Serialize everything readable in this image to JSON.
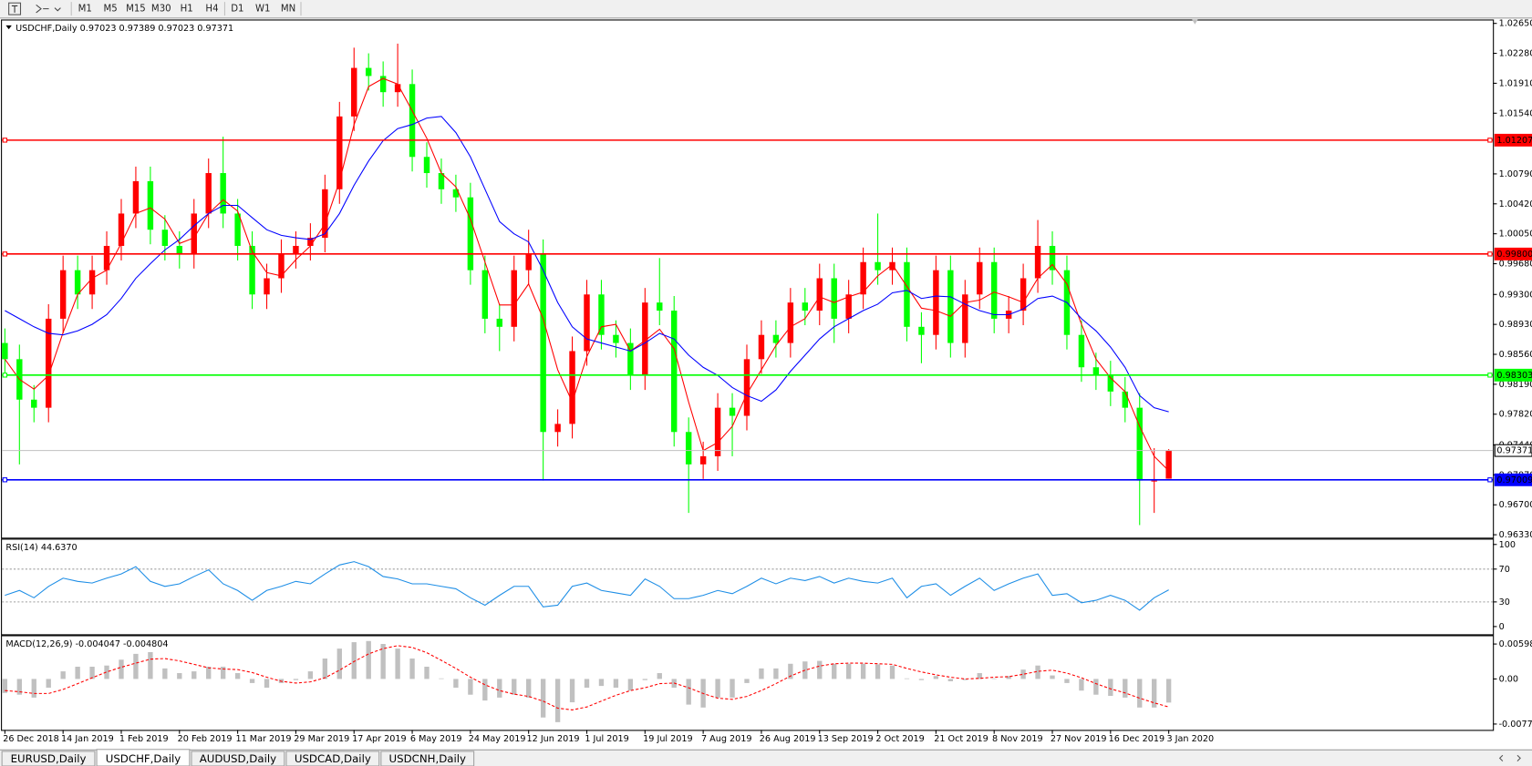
{
  "toolbar": {
    "periods": [
      "M1",
      "M5",
      "M15",
      "M30",
      "H1",
      "H4",
      "D1",
      "W1",
      "MN"
    ]
  },
  "tabs": [
    "EURUSD,Daily",
    "USDCHF,Daily",
    "AUDUSD,Daily",
    "USDCAD,Daily",
    "USDCNH,Daily"
  ],
  "active_tab": 1,
  "chart_data": [
    {
      "type": "candlestick",
      "title": "USDCHF,Daily  0.97023 0.97389 0.97023 0.97371",
      "categories": [
        "26 Dec 2018",
        null,
        null,
        null,
        "14 Jan 2019",
        null,
        null,
        null,
        "1 Feb 2019",
        null,
        null,
        null,
        "20 Feb 2019",
        null,
        null,
        null,
        "11 Mar 2019",
        null,
        null,
        null,
        "29 Mar 2019",
        null,
        null,
        null,
        "17 Apr 2019",
        null,
        null,
        null,
        "6 May 2019",
        null,
        null,
        null,
        "24 May 2019",
        null,
        null,
        null,
        "12 Jun 2019",
        null,
        null,
        null,
        "1 Jul 2019",
        null,
        null,
        null,
        "19 Jul 2019",
        null,
        null,
        null,
        "7 Aug 2019",
        null,
        null,
        null,
        "26 Aug 2019",
        null,
        null,
        null,
        "13 Sep 2019",
        null,
        null,
        null,
        "2 Oct 2019",
        null,
        null,
        null,
        "21 Oct 2019",
        null,
        null,
        null,
        "8 Nov 2019",
        null,
        null,
        null,
        "27 Nov 2019",
        null,
        null,
        null,
        "16 Dec 2019",
        null,
        null,
        null,
        "3 Jan 2020"
      ],
      "open": [
        0.987,
        0.985,
        0.98,
        0.979,
        0.99,
        0.996,
        0.993,
        0.996,
        0.999,
        1.003,
        1.007,
        1.001,
        0.999,
        0.998,
        1.003,
        1.008,
        1.003,
        0.999,
        0.993,
        0.995,
        0.998,
        0.999,
        1.0,
        1.006,
        1.015,
        1.021,
        1.02,
        1.018,
        1.019,
        1.01,
        1.008,
        1.006,
        1.005,
        0.996,
        0.99,
        0.989,
        0.996,
        0.998,
        0.976,
        0.977,
        0.986,
        0.993,
        0.988,
        0.987,
        0.983,
        0.992,
        0.991,
        0.976,
        0.972,
        0.973,
        0.979,
        0.978,
        0.985,
        0.988,
        0.987,
        0.992,
        0.991,
        0.995,
        0.99,
        0.993,
        0.997,
        0.996,
        0.997,
        0.989,
        0.988,
        0.996,
        0.987,
        0.993,
        0.997,
        0.99,
        0.991,
        0.995,
        0.999,
        0.996,
        0.988,
        0.984,
        0.983,
        0.981,
        0.979,
        0.97,
        0.97023
      ],
      "high": [
        0.9888,
        0.9868,
        0.9818,
        0.9918,
        0.9978,
        0.9978,
        0.9978,
        1.0008,
        1.0048,
        1.0088,
        1.0088,
        1.0028,
        1.0008,
        1.0048,
        1.0098,
        1.0125,
        1.0048,
        1.0008,
        0.9968,
        0.9998,
        1.0008,
        1.0018,
        1.0078,
        1.0168,
        1.0235,
        1.0228,
        1.0218,
        1.024,
        1.0208,
        1.0118,
        1.0098,
        1.0078,
        1.0068,
        0.9978,
        0.9918,
        0.9978,
        1.001,
        0.9998,
        0.9788,
        0.9878,
        0.9948,
        0.9948,
        0.9898,
        0.9888,
        0.9938,
        0.9975,
        0.9928,
        0.9778,
        0.9748,
        0.9808,
        0.9808,
        0.9868,
        0.9898,
        0.9898,
        0.9938,
        0.9938,
        0.9968,
        0.9968,
        0.9948,
        0.9988,
        1.003,
        0.9988,
        0.9988,
        0.9908,
        0.9978,
        0.9978,
        0.9948,
        0.9988,
        0.9988,
        0.9928,
        0.9968,
        1.0022,
        1.0008,
        0.9978,
        0.9898,
        0.9858,
        0.9848,
        0.9828,
        0.9808,
        0.974,
        0.97389
      ],
      "low": [
        0.9832,
        0.972,
        0.9772,
        0.9772,
        0.9882,
        0.9912,
        0.9912,
        0.9942,
        0.9972,
        1.0012,
        0.9992,
        0.9972,
        0.9962,
        0.9962,
        1.0012,
        1.0012,
        0.9972,
        0.9912,
        0.9912,
        0.9932,
        0.9962,
        0.9972,
        0.9982,
        1.0042,
        1.0132,
        1.0182,
        1.0162,
        1.0162,
        1.0082,
        1.0062,
        1.0042,
        1.0032,
        0.9942,
        0.9882,
        0.986,
        0.9872,
        0.9942,
        0.97,
        0.9742,
        0.9752,
        0.9842,
        0.9862,
        0.9852,
        0.9812,
        0.9812,
        0.9892,
        0.9742,
        0.966,
        0.9702,
        0.9712,
        0.973,
        0.9762,
        0.9832,
        0.9852,
        0.9852,
        0.9892,
        0.9892,
        0.987,
        0.9882,
        0.9912,
        0.9942,
        0.9942,
        0.9872,
        0.9845,
        0.9862,
        0.9852,
        0.9852,
        0.9912,
        0.9882,
        0.9882,
        0.9892,
        0.9932,
        0.9942,
        0.9862,
        0.9822,
        0.9812,
        0.9792,
        0.9772,
        0.9645,
        0.966,
        0.97023
      ],
      "close": [
        0.985,
        0.98,
        0.979,
        0.99,
        0.996,
        0.993,
        0.996,
        0.999,
        1.003,
        1.007,
        1.001,
        0.999,
        0.998,
        1.003,
        1.008,
        1.003,
        0.999,
        0.993,
        0.995,
        0.998,
        0.999,
        1.0,
        1.006,
        1.015,
        1.021,
        1.02,
        1.018,
        1.019,
        1.01,
        1.008,
        1.006,
        1.005,
        0.996,
        0.99,
        0.989,
        0.996,
        0.998,
        0.976,
        0.977,
        0.986,
        0.993,
        0.988,
        0.987,
        0.983,
        0.992,
        0.991,
        0.976,
        0.972,
        0.973,
        0.979,
        0.978,
        0.985,
        0.988,
        0.987,
        0.992,
        0.991,
        0.995,
        0.99,
        0.993,
        0.997,
        0.996,
        0.997,
        0.989,
        0.988,
        0.996,
        0.987,
        0.993,
        0.997,
        0.99,
        0.991,
        0.995,
        0.999,
        0.996,
        0.988,
        0.984,
        0.983,
        0.981,
        0.979,
        0.97,
        0.97,
        0.97371
      ],
      "up_color": "#ff0000",
      "down_color": "#00ff00",
      "lines": [
        {
          "color": "#ff0000",
          "values": [
            0.985,
            0.9825,
            0.9813,
            0.983,
            0.9883,
            0.993,
            0.995,
            0.996,
            0.9993,
            1.003,
            1.0037,
            1.0023,
            0.9993,
            1.0,
            1.003,
            1.0047,
            1.0033,
            0.9983,
            0.9957,
            0.9953,
            0.9973,
            0.999,
            1.0017,
            1.007,
            1.014,
            1.0187,
            1.0197,
            1.019,
            1.0157,
            1.0123,
            1.008,
            1.0063,
            1.0023,
            0.997,
            0.9917,
            0.9917,
            0.9943,
            0.99,
            0.9837,
            0.9797,
            0.9853,
            0.989,
            0.9893,
            0.986,
            0.9873,
            0.9887,
            0.9863,
            0.9797,
            0.9737,
            0.9747,
            0.9767,
            0.9807,
            0.9837,
            0.9867,
            0.989,
            0.99,
            0.9927,
            0.992,
            0.9927,
            0.9933,
            0.9953,
            0.9967,
            0.994,
            0.9913,
            0.991,
            0.9903,
            0.992,
            0.9923,
            0.9933,
            0.9927,
            0.992,
            0.995,
            0.9967,
            0.9943,
            0.9893,
            0.985,
            0.9827,
            0.981,
            0.9767,
            0.973,
            0.9712
          ]
        },
        {
          "color": "#0000ff",
          "values": [
            0.991,
            0.99,
            0.989,
            0.9882,
            0.988,
            0.9885,
            0.9893,
            0.9905,
            0.9925,
            0.995,
            0.9968,
            0.9985,
            0.9998,
            1.0015,
            1.003,
            1.004,
            1.004,
            1.0025,
            1.001,
            1.0003,
            1.0,
            0.9998,
            1.0005,
            1.003,
            1.0065,
            1.0095,
            1.012,
            1.0135,
            1.014,
            1.0148,
            1.015,
            1.013,
            1.01,
            1.006,
            1.002,
            1.0005,
            0.9995,
            0.996,
            0.992,
            0.989,
            0.9875,
            0.987,
            0.9865,
            0.986,
            0.987,
            0.9882,
            0.9875,
            0.9855,
            0.984,
            0.983,
            0.9815,
            0.9805,
            0.9798,
            0.9812,
            0.9835,
            0.9855,
            0.9875,
            0.989,
            0.99,
            0.991,
            0.9918,
            0.9932,
            0.9935,
            0.9925,
            0.9928,
            0.9927,
            0.9918,
            0.991,
            0.9905,
            0.9905,
            0.9912,
            0.9925,
            0.9928,
            0.992,
            0.99,
            0.9885,
            0.9865,
            0.984,
            0.9805,
            0.979,
            0.9785
          ]
        }
      ],
      "levels": [
        {
          "value": 1.01207,
          "label": "1.01207",
          "color": "#ff0000"
        },
        {
          "value": 0.998,
          "label": "0.99800",
          "color": "#ff0000"
        },
        {
          "value": 0.98303,
          "label": "0.98303",
          "color": "#00ff00"
        },
        {
          "value": 0.97009,
          "label": "0.97009",
          "color": "#0000ff"
        },
        {
          "value": 0.97371,
          "label": "0.97371",
          "color": "#c0c0c0"
        }
      ],
      "ylim": [
        0.96294,
        1.02698
      ],
      "yticks": [
        {
          "value": 1.0265,
          "label": "1.02650"
        },
        {
          "value": 1.0228,
          "label": "1.02280"
        },
        {
          "value": 1.0191,
          "label": "1.01910"
        },
        {
          "value": 1.0154,
          "label": "1.01540"
        },
        {
          "value": 1.0079,
          "label": "1.00790"
        },
        {
          "value": 1.0042,
          "label": "1.00420"
        },
        {
          "value": 1.0005,
          "label": "1.00050"
        },
        {
          "value": 0.9968,
          "label": "0.99680"
        },
        {
          "value": 0.993,
          "label": "0.99300"
        },
        {
          "value": 0.9893,
          "label": "0.98930"
        },
        {
          "value": 0.9856,
          "label": "0.98560"
        },
        {
          "value": 0.9819,
          "label": "0.98190"
        },
        {
          "value": 0.9782,
          "label": "0.97820"
        },
        {
          "value": 0.9744,
          "label": "0.97440"
        },
        {
          "value": 0.9707,
          "label": "0.97070"
        },
        {
          "value": 0.967,
          "label": "0.96700"
        },
        {
          "value": 0.9633,
          "label": "0.96330"
        }
      ]
    },
    {
      "type": "line",
      "title": "RSI(14) 44.6370",
      "color": "#1e8ee6",
      "values": [
        38,
        44,
        35,
        49,
        59,
        55,
        53,
        59,
        64,
        73,
        55,
        49,
        52,
        61,
        69,
        52,
        44,
        32,
        44,
        49,
        55,
        52,
        64,
        75,
        79,
        73,
        61,
        58,
        52,
        52,
        49,
        46,
        35,
        26,
        38,
        49,
        49,
        24,
        26,
        49,
        53,
        44,
        41,
        38,
        58,
        49,
        34,
        34,
        38,
        44,
        40,
        49,
        59,
        52,
        59,
        56,
        61,
        53,
        59,
        55,
        53,
        59,
        35,
        49,
        52,
        38,
        49,
        59,
        44,
        52,
        59,
        64,
        38,
        40,
        29,
        32,
        38,
        32,
        20,
        35,
        44.637
      ],
      "levels": [
        70,
        30
      ],
      "ylim": [
        -9.4,
        105.9
      ],
      "yticks": [
        100,
        70,
        30,
        0
      ]
    },
    {
      "type": "macd",
      "title": "MACD(12,26,9) -0.004047 -0.004804",
      "color": "#c0c0c0",
      "signal_color": "#ff0000",
      "values": [
        -0.0024,
        -0.0027,
        -0.0032,
        -0.0015,
        0.0013,
        0.0021,
        0.0021,
        0.0023,
        0.0033,
        0.0043,
        0.0046,
        0.0018,
        0.001,
        0.0013,
        0.0021,
        0.0021,
        0.001,
        -0.0007,
        -0.0015,
        -0.0007,
        -0.0002,
        0.0013,
        0.0035,
        0.0052,
        0.0063,
        0.0065,
        0.006,
        0.0052,
        0.0035,
        0.0021,
        0.0001,
        -0.0015,
        -0.0027,
        -0.0037,
        -0.0032,
        -0.0027,
        -0.0032,
        -0.0066,
        -0.0074,
        -0.004,
        -0.0015,
        -0.0012,
        -0.0015,
        -0.002,
        -0.0002,
        0.001,
        -0.0015,
        -0.0044,
        -0.0049,
        -0.0032,
        -0.0032,
        -0.0007,
        0.0018,
        0.0018,
        0.0026,
        0.003,
        0.0031,
        0.0026,
        0.0026,
        0.0026,
        0.0025,
        0.0023,
        0.0001,
        -0.0002,
        0.0005,
        -0.0004,
        -0.0002,
        0.001,
        0.0001,
        0.0005,
        0.0016,
        0.0023,
        0.0006,
        -0.0007,
        -0.002,
        -0.0027,
        -0.0029,
        -0.0032,
        -0.0049,
        -0.0049,
        -0.004047
      ],
      "signal": [
        -0.002,
        -0.0022,
        -0.0025,
        -0.0025,
        -0.0018,
        -0.0008,
        0.0002,
        0.0012,
        0.002,
        0.0027,
        0.0034,
        0.0035,
        0.0031,
        0.0025,
        0.0019,
        0.0017,
        0.0016,
        0.0011,
        0.0003,
        -0.0004,
        -0.0007,
        -0.0005,
        0.0002,
        0.0015,
        0.003,
        0.0043,
        0.0052,
        0.0057,
        0.0054,
        0.0045,
        0.0032,
        0.0018,
        0.0003,
        -0.001,
        -0.002,
        -0.0026,
        -0.003,
        -0.0038,
        -0.005,
        -0.0053,
        -0.0048,
        -0.0038,
        -0.0028,
        -0.002,
        -0.0015,
        -0.0008,
        -0.0007,
        -0.0015,
        -0.0025,
        -0.0033,
        -0.0035,
        -0.003,
        -0.002,
        -0.0008,
        0.0005,
        0.0015,
        0.0022,
        0.0026,
        0.0027,
        0.0027,
        0.0026,
        0.0025,
        0.0018,
        0.0012,
        0.0007,
        0.0003,
        0.0,
        0.0001,
        0.0003,
        0.0004,
        0.0008,
        0.0013,
        0.0015,
        0.001,
        0.0002,
        -0.0008,
        -0.0017,
        -0.0024,
        -0.0033,
        -0.0041,
        -0.004804
      ],
      "ylim": [
        -0.008734,
        0.007324
      ],
      "yticks": [
        0.005986,
        {
          "value": 0,
          "label": "0.00"
        },
        -0.00773
      ]
    }
  ]
}
